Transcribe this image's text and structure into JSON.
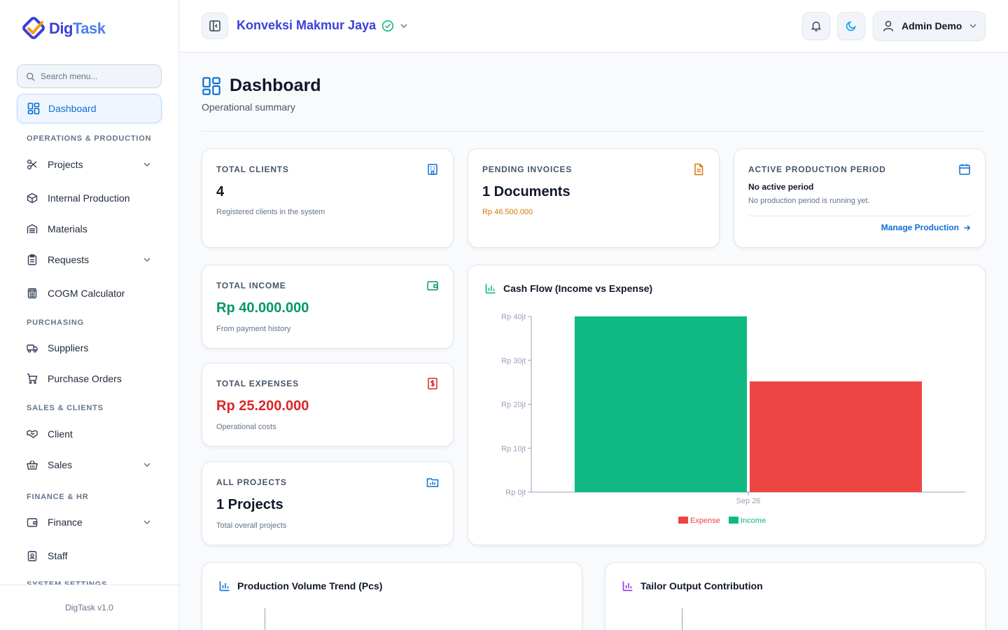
{
  "brand": {
    "name_part1": "Dig",
    "name_part2": "Task",
    "version": "DigTask v1.0"
  },
  "sidebar": {
    "search_placeholder": "Search menu...",
    "active_item": "Dashboard",
    "sections": {
      "operations": "OPERATIONS & PRODUCTION",
      "purchasing": "PURCHASING",
      "sales": "SALES & CLIENTS",
      "finance": "FINANCE & HR",
      "system": "SYSTEM SETTINGS"
    },
    "items": {
      "projects": "Projects",
      "internal_production": "Internal Production",
      "materials": "Materials",
      "requests": "Requests",
      "cogm": "COGM Calculator",
      "suppliers": "Suppliers",
      "purchase_orders": "Purchase Orders",
      "client": "Client",
      "sales": "Sales",
      "finance": "Finance",
      "staff": "Staff"
    }
  },
  "header": {
    "company": "Konveksi Makmur Jaya",
    "user": "Admin Demo"
  },
  "page": {
    "title": "Dashboard",
    "subtitle": "Operational summary"
  },
  "cards": {
    "clients": {
      "label": "TOTAL CLIENTS",
      "value": "4",
      "note": "Registered clients in the system"
    },
    "invoices": {
      "label": "PENDING INVOICES",
      "value": "1 Documents",
      "note": "Rp 46.500.000"
    },
    "period": {
      "label": "ACTIVE PRODUCTION PERIOD",
      "status": "No active period",
      "note": "No production period is running yet.",
      "link": "Manage Production"
    },
    "income": {
      "label": "TOTAL INCOME",
      "value": "Rp 40.000.000",
      "note": "From payment history"
    },
    "expenses": {
      "label": "TOTAL EXPENSES",
      "value": "Rp 25.200.000",
      "note": "Operational costs"
    },
    "projects": {
      "label": "ALL PROJECTS",
      "value": "1 Projects",
      "note": "Total overall projects"
    }
  },
  "colors": {
    "accent": "#0b6fd0",
    "income": "#10b981",
    "expense": "#ef4444",
    "brand": "#3b3fd8"
  },
  "chart_data": [
    {
      "type": "bar",
      "title": "Cash Flow (Income vs Expense)",
      "categories": [
        "Sep 26"
      ],
      "series": [
        {
          "name": "Income",
          "values": [
            40000000
          ],
          "color": "#10b981"
        },
        {
          "name": "Expense",
          "values": [
            25200000
          ],
          "color": "#ef4444"
        }
      ],
      "ylim": [
        0,
        40000000
      ],
      "yticks": [
        0,
        10000000,
        20000000,
        30000000,
        40000000
      ],
      "ytick_labels": [
        "Rp 0jt",
        "Rp 10jt",
        "Rp 20jt",
        "Rp 30jt",
        "Rp 40jt"
      ],
      "legend": [
        "Expense",
        "Income"
      ],
      "legend_position": "bottom"
    },
    {
      "type": "line",
      "title": "Production Volume Trend (Pcs)"
    },
    {
      "type": "bar",
      "title": "Tailor Output Contribution"
    }
  ]
}
